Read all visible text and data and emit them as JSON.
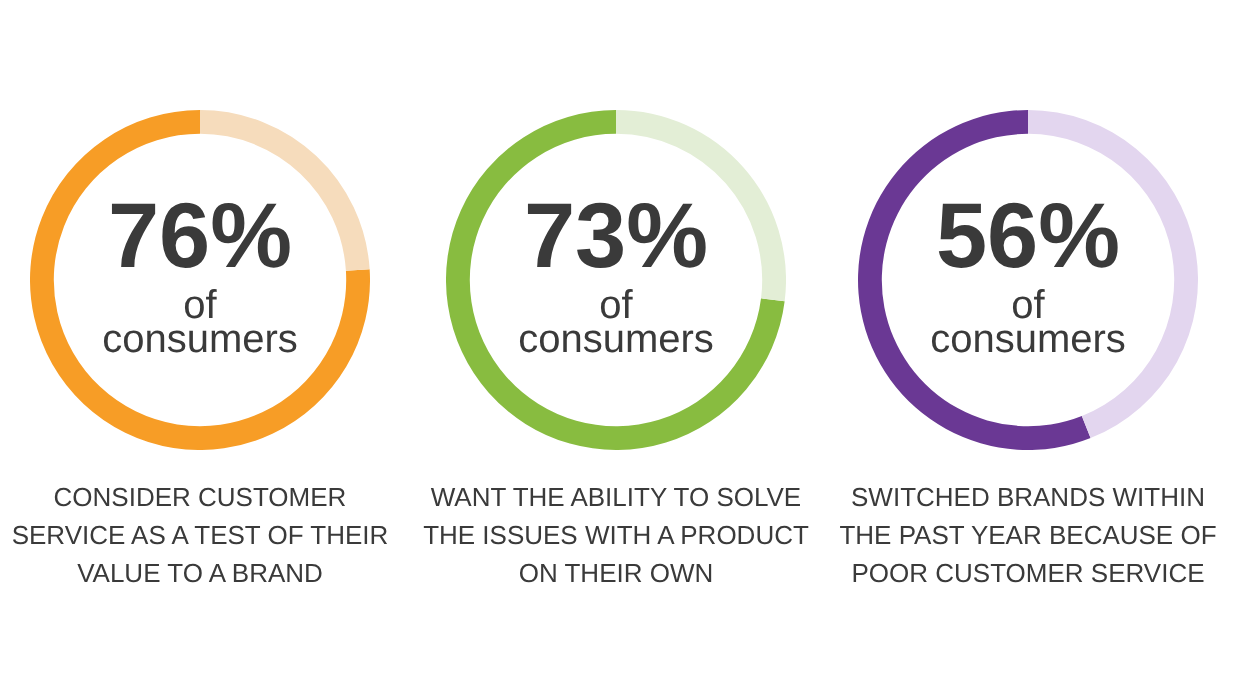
{
  "chart_data": [
    {
      "type": "donut",
      "categories": [
        null,
        null
      ],
      "values": [
        76,
        24
      ],
      "colors": [
        "#f79d26",
        "#f6dcbc"
      ],
      "value_labels": [
        "76%",
        null
      ],
      "subtitle": "of consumers",
      "annotations": [
        "CONSIDER CUSTOMER SERVICE AS A TEST OF THEIR VALUE TO A BRAND"
      ]
    },
    {
      "type": "donut",
      "categories": [
        null,
        null
      ],
      "values": [
        73,
        27
      ],
      "colors": [
        "#88bc40",
        "#e3eed6"
      ],
      "value_labels": [
        "73%",
        null
      ],
      "subtitle": "of consumers",
      "annotations": [
        "WANT THE ABILITY TO SOLVE THE ISSUES WITH A PRODUCT ON THEIR OWN"
      ]
    },
    {
      "type": "donut",
      "categories": [
        null,
        null
      ],
      "values": [
        56,
        44
      ],
      "colors": [
        "#6a3894",
        "#e3d6ef"
      ],
      "value_labels": [
        "56%",
        null
      ],
      "subtitle": "of consumers",
      "annotations": [
        "SWITCHED BRANDS WITHIN THE PAST YEAR BECAUSE OF POOR CUSTOMER SERVICE"
      ]
    }
  ]
}
